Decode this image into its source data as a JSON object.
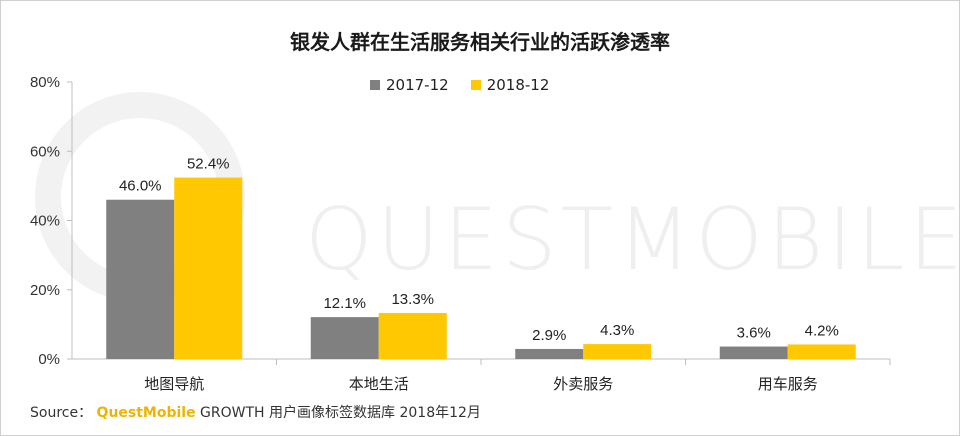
{
  "title": "银发人群在生活服务相关行业的活跃渗透率",
  "legend": [
    {
      "name": "2017-12",
      "color": "#808080"
    },
    {
      "name": "2018-12",
      "color": "#ffc800"
    }
  ],
  "watermark": "QUESTMOBILE",
  "source": {
    "prefix": "Source： ",
    "brand": "QuestMobile",
    "rest": " GROWTH 用户画像标签数据库 2018年12月"
  },
  "chart_data": {
    "type": "bar",
    "title": "银发人群在生活服务相关行业的活跃渗透率",
    "categories": [
      "地图导航",
      "本地生活",
      "外卖服务",
      "用车服务"
    ],
    "series": [
      {
        "name": "2017-12",
        "values": [
          46.0,
          12.1,
          2.9,
          3.6
        ],
        "labels": [
          "46.0%",
          "12.1%",
          "2.9%",
          "3.6%"
        ],
        "color": "#808080"
      },
      {
        "name": "2018-12",
        "values": [
          52.4,
          13.3,
          4.3,
          4.2
        ],
        "labels": [
          "52.4%",
          "13.3%",
          "4.3%",
          "4.2%"
        ],
        "color": "#ffc800"
      }
    ],
    "ylim": [
      0,
      80
    ],
    "yticks": [
      "0%",
      "20%",
      "40%",
      "60%",
      "80%"
    ],
    "legend_position": "top",
    "grid": false
  }
}
